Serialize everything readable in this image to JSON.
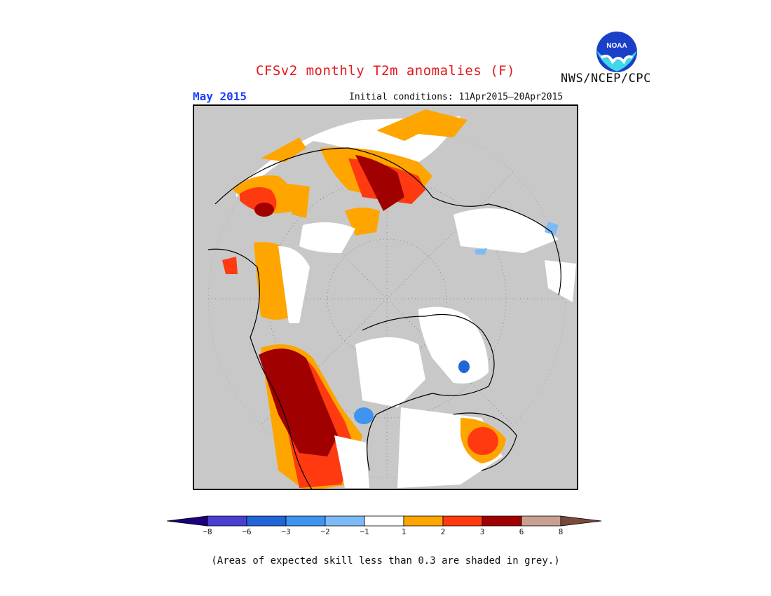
{
  "title": "CFSv2 monthly T2m anomalies (F)",
  "agency": "NWS/NCEP/CPC",
  "logo_text": "NOAA",
  "month": "May 2015",
  "initial_conditions": "Initial conditions: 11Apr2015–20Apr2015",
  "note": "(Areas of expected skill less than 0.3 are shaded in grey.)",
  "legend": {
    "ticks": [
      "−8",
      "−6",
      "−3",
      "−2",
      "−1",
      "1",
      "2",
      "3",
      "6",
      "8"
    ],
    "colors": [
      "#1a0080",
      "#4a3fd0",
      "#2066d8",
      "#3f94f0",
      "#7dbaf5",
      "#ffffff",
      "#ffa500",
      "#ff3a10",
      "#a00000",
      "#c8a090",
      "#7a4a38"
    ]
  },
  "colors": {
    "grey_low_skill": "#c8c8c8",
    "orange": "#ffa500",
    "red": "#ff3a10",
    "dark_red": "#a00000",
    "light_blue": "#7dbaf5",
    "blue": "#3f94f0"
  }
}
